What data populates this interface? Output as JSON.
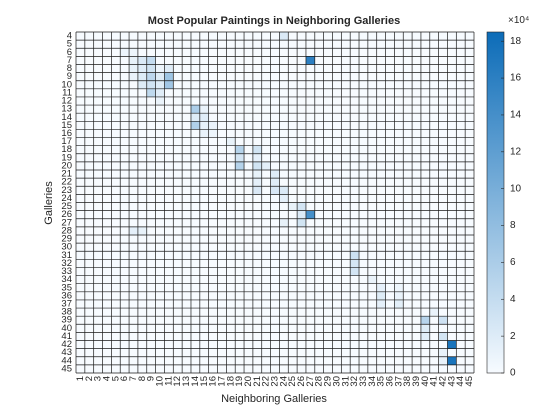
{
  "chart_data": {
    "type": "heatmap",
    "title": "Most Popular Paintings in Neighboring Galleries",
    "xlabel": "Neighboring Galleries",
    "ylabel": "Galleries",
    "x": [
      1,
      2,
      3,
      4,
      5,
      6,
      7,
      8,
      9,
      10,
      11,
      12,
      13,
      14,
      15,
      16,
      17,
      18,
      19,
      20,
      21,
      22,
      23,
      24,
      25,
      26,
      27,
      28,
      29,
      30,
      31,
      32,
      33,
      34,
      35,
      36,
      37,
      38,
      39,
      40,
      41,
      42,
      43,
      44,
      45
    ],
    "y": [
      4,
      5,
      6,
      7,
      8,
      9,
      10,
      11,
      12,
      13,
      14,
      15,
      16,
      17,
      18,
      19,
      20,
      21,
      22,
      23,
      24,
      25,
      26,
      27,
      28,
      29,
      30,
      31,
      32,
      33,
      34,
      35,
      36,
      37,
      38,
      39,
      40,
      41,
      42,
      43,
      44,
      45
    ],
    "colorbar": {
      "ticks": [
        0,
        2,
        4,
        6,
        8,
        10,
        12,
        14,
        16,
        18
      ],
      "scale_label": "×10⁴",
      "limits": [
        0,
        185000
      ]
    },
    "grid": true,
    "colors": {
      "low": "#f7fbff",
      "high": "#0c6cb8",
      "gridline": "#1a1a1a"
    },
    "cells": [
      [
        4,
        24,
        22000
      ],
      [
        6,
        6,
        8000
      ],
      [
        6,
        7,
        8000
      ],
      [
        7,
        7,
        12000
      ],
      [
        7,
        8,
        22000
      ],
      [
        7,
        9,
        40000
      ],
      [
        7,
        27,
        160000
      ],
      [
        8,
        7,
        12000
      ],
      [
        8,
        8,
        18000
      ],
      [
        8,
        9,
        30000
      ],
      [
        8,
        10,
        8000
      ],
      [
        8,
        11,
        18000
      ],
      [
        9,
        7,
        10000
      ],
      [
        9,
        8,
        20000
      ],
      [
        9,
        9,
        46000
      ],
      [
        9,
        10,
        20000
      ],
      [
        9,
        11,
        70000
      ],
      [
        10,
        8,
        20000
      ],
      [
        10,
        9,
        30000
      ],
      [
        10,
        10,
        20000
      ],
      [
        10,
        11,
        68000
      ],
      [
        11,
        9,
        44000
      ],
      [
        11,
        10,
        18000
      ],
      [
        12,
        10,
        10000
      ],
      [
        13,
        14,
        58000
      ],
      [
        13,
        15,
        10000
      ],
      [
        14,
        14,
        20000
      ],
      [
        14,
        15,
        18000
      ],
      [
        15,
        14,
        56000
      ],
      [
        15,
        15,
        12000
      ],
      [
        15,
        16,
        10000
      ],
      [
        16,
        15,
        10000
      ],
      [
        16,
        16,
        8000
      ],
      [
        17,
        18,
        12000
      ],
      [
        18,
        19,
        52000
      ],
      [
        18,
        21,
        30000
      ],
      [
        19,
        19,
        28000
      ],
      [
        19,
        21,
        14000
      ],
      [
        20,
        19,
        52000
      ],
      [
        20,
        21,
        30000
      ],
      [
        20,
        22,
        16000
      ],
      [
        21,
        21,
        12000
      ],
      [
        21,
        23,
        20000
      ],
      [
        22,
        21,
        14000
      ],
      [
        22,
        23,
        18000
      ],
      [
        23,
        21,
        24000
      ],
      [
        23,
        23,
        24000
      ],
      [
        23,
        24,
        22000
      ],
      [
        24,
        24,
        14000
      ],
      [
        25,
        25,
        12000
      ],
      [
        25,
        26,
        28000
      ],
      [
        26,
        26,
        22000
      ],
      [
        26,
        27,
        140000
      ],
      [
        27,
        24,
        12000
      ],
      [
        27,
        26,
        30000
      ],
      [
        28,
        7,
        14000
      ],
      [
        28,
        8,
        12000
      ],
      [
        31,
        32,
        34000
      ],
      [
        32,
        32,
        26000
      ],
      [
        33,
        32,
        28000
      ],
      [
        34,
        34,
        10000
      ],
      [
        35,
        35,
        14000
      ],
      [
        35,
        37,
        8000
      ],
      [
        36,
        35,
        20000
      ],
      [
        36,
        37,
        10000
      ],
      [
        37,
        35,
        14000
      ],
      [
        37,
        37,
        16000
      ],
      [
        38,
        41,
        10000
      ],
      [
        39,
        40,
        50000
      ],
      [
        39,
        42,
        32000
      ],
      [
        40,
        40,
        20000
      ],
      [
        41,
        40,
        18000
      ],
      [
        41,
        42,
        28000
      ],
      [
        42,
        43,
        175000
      ],
      [
        43,
        42,
        12000
      ],
      [
        44,
        42,
        12000
      ],
      [
        44,
        43,
        175000
      ]
    ]
  }
}
